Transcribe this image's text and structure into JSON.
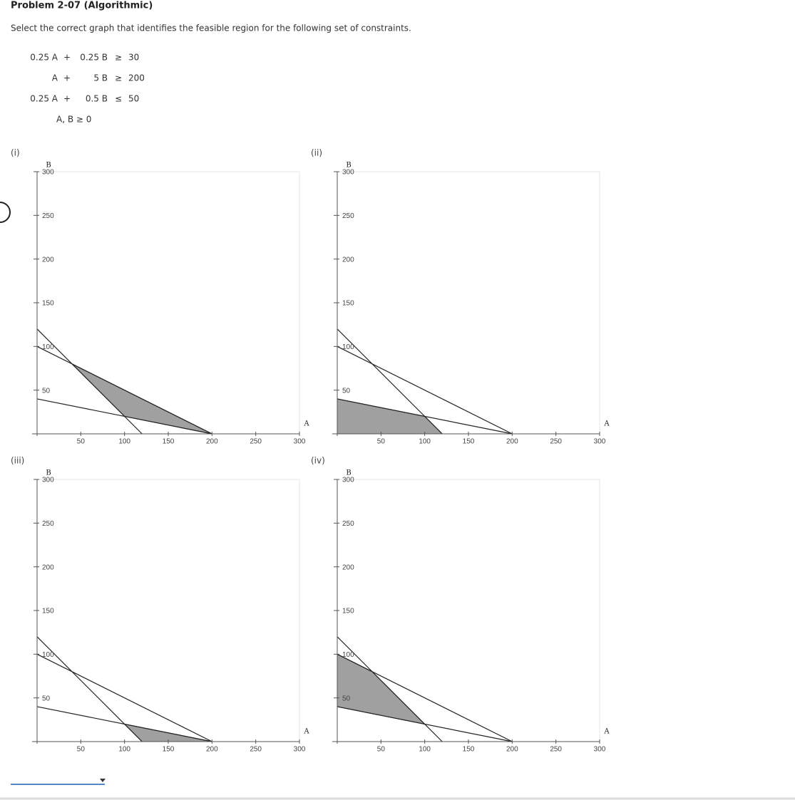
{
  "header": {
    "title": "Problem 2-07 (Algorithmic)",
    "instruction": "Select the correct graph that identifies the feasible region for the following set of constraints."
  },
  "constraints": [
    [
      "0.25 A",
      "+",
      "0.25 B",
      "≥",
      "30"
    ],
    [
      "A",
      "+",
      "5 B",
      "≥",
      "200"
    ],
    [
      "0.25 A",
      "+",
      "0.5 B",
      "≤",
      "50"
    ],
    [
      "A, B ≥ 0"
    ]
  ],
  "graphs": {
    "x_label": "A",
    "y_label": "B",
    "xlim": [
      0,
      300
    ],
    "ylim": [
      0,
      300
    ],
    "xticks": [
      50,
      100,
      150,
      200,
      250,
      300
    ],
    "yticks": [
      50,
      100,
      150,
      200,
      250,
      300
    ],
    "lines": [
      [
        [
          0,
          120
        ],
        [
          120,
          0
        ]
      ],
      [
        [
          0,
          40
        ],
        [
          200,
          0
        ]
      ],
      [
        [
          0,
          100
        ],
        [
          200,
          0
        ]
      ]
    ],
    "options": [
      {
        "label": "(i)",
        "region": [
          [
            40,
            80
          ],
          [
            100,
            20
          ],
          [
            200,
            0
          ]
        ]
      },
      {
        "label": "(ii)",
        "region": [
          [
            0,
            0
          ],
          [
            0,
            40
          ],
          [
            100,
            20
          ],
          [
            120,
            0
          ]
        ]
      },
      {
        "label": "(iii)",
        "region": [
          [
            100,
            20
          ],
          [
            200,
            0
          ],
          [
            120,
            0
          ]
        ]
      },
      {
        "label": "(iv)",
        "region": [
          [
            0,
            100
          ],
          [
            40,
            80
          ],
          [
            100,
            20
          ],
          [
            0,
            40
          ]
        ]
      }
    ]
  }
}
